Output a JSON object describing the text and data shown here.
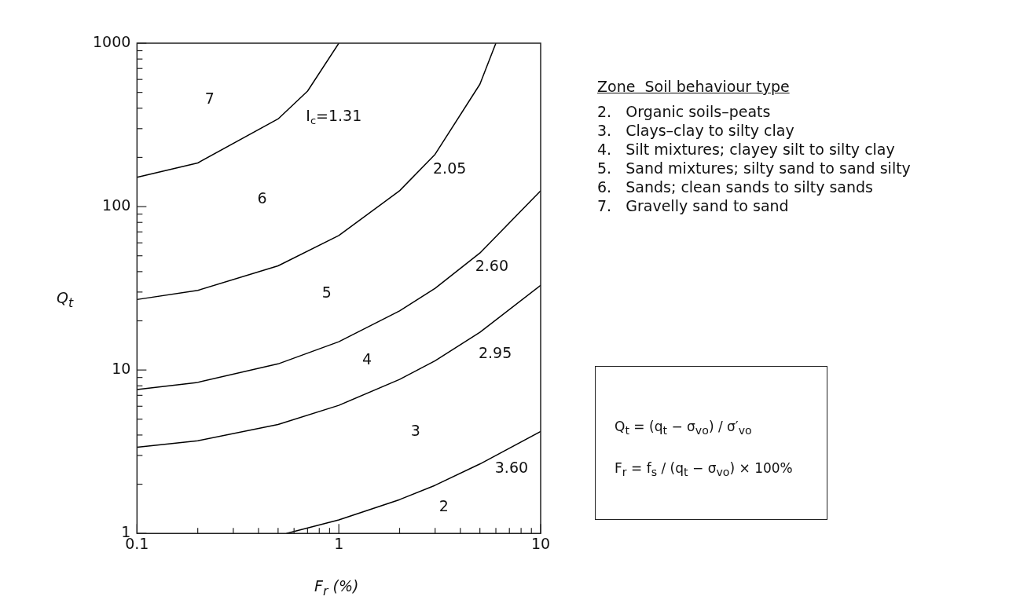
{
  "chart_data": {
    "type": "line",
    "xlabel": "F$_{r}$ (%)",
    "ylabel": "Q$_{t}$",
    "log": "xy",
    "grid": false,
    "legend": false,
    "marker": "none",
    "line_style": "solid",
    "xlim": [
      0.1,
      10
    ],
    "ylim": [
      1,
      1000
    ],
    "xticks": [
      0.1,
      {
        "value": 0.2,
        "label": null
      },
      {
        "value": 0.3,
        "label": null
      },
      {
        "value": 0.4,
        "label": null
      },
      {
        "value": 0.5,
        "label": null
      },
      {
        "value": 0.6,
        "label": null
      },
      {
        "value": 0.7,
        "label": null
      },
      {
        "value": 0.8,
        "label": null
      },
      {
        "value": 0.9,
        "label": null
      },
      1,
      {
        "value": 2,
        "label": null
      },
      {
        "value": 3,
        "label": null
      },
      {
        "value": 4,
        "label": null
      },
      {
        "value": 5,
        "label": null
      },
      {
        "value": 6,
        "label": null
      },
      {
        "value": 7,
        "label": null
      },
      {
        "value": 8,
        "label": null
      },
      {
        "value": 9,
        "label": null
      },
      10
    ],
    "yticks": [
      1,
      {
        "value": 2,
        "label": null
      },
      {
        "value": 3,
        "label": null
      },
      {
        "value": 4,
        "label": null
      },
      {
        "value": 5,
        "label": null
      },
      {
        "value": 6,
        "label": null
      },
      {
        "value": 7,
        "label": null
      },
      {
        "value": 8,
        "label": null
      },
      {
        "value": 9,
        "label": null
      },
      10,
      {
        "value": 20,
        "label": null
      },
      {
        "value": 30,
        "label": null
      },
      {
        "value": 40,
        "label": null
      },
      {
        "value": 50,
        "label": null
      },
      {
        "value": 60,
        "label": null
      },
      {
        "value": 70,
        "label": null
      },
      {
        "value": 80,
        "label": null
      },
      {
        "value": 90,
        "label": null
      },
      100,
      {
        "value": 200,
        "label": null
      },
      {
        "value": 300,
        "label": null
      },
      {
        "value": 400,
        "label": null
      },
      {
        "value": 500,
        "label": null
      },
      {
        "value": 600,
        "label": null
      },
      {
        "value": 700,
        "label": null
      },
      {
        "value": 800,
        "label": null
      },
      {
        "value": 900,
        "label": null
      },
      1000
    ],
    "series": [
      {
        "name": "I$_{c}$=1.31",
        "color": "#000000",
        "x": [
          0.1,
          0.2,
          0.5,
          0.7,
          1.0
        ],
        "values": [
          151,
          185,
          344,
          509,
          1000
        ]
      },
      {
        "name": "2.05",
        "color": "#000000",
        "x": [
          0.1,
          0.2,
          0.5,
          1,
          2,
          3,
          5,
          6
        ],
        "values": [
          27,
          30.7,
          43.4,
          66.5,
          125,
          209,
          561,
          1000
        ]
      },
      {
        "name": "2.60",
        "color": "#000000",
        "x": [
          0.1,
          0.2,
          0.5,
          1,
          2,
          3,
          5,
          10
        ],
        "values": [
          7.6,
          8.4,
          10.9,
          14.9,
          23,
          31.6,
          52,
          125
        ]
      },
      {
        "name": "2.95",
        "color": "#000000",
        "x": [
          0.1,
          0.2,
          0.5,
          1,
          2,
          3,
          5,
          10
        ],
        "values": [
          3.37,
          3.69,
          4.64,
          6.08,
          8.76,
          11.4,
          17,
          33
        ]
      },
      {
        "name": "3.60",
        "color": "#000000",
        "x": [
          0.55,
          1,
          2,
          3,
          5,
          10
        ],
        "values": [
          1,
          1.21,
          1.61,
          1.97,
          2.66,
          4.2
        ]
      }
    ],
    "annotations": [
      "7",
      "6",
      "5",
      "4",
      "3",
      "2",
      "Zone  Soil behaviour type",
      "2.   Organic soils–peats",
      "3.   Clays–clay to silty clay",
      "4.   Silt mixtures; clayey silt to silty clay",
      "5.   Sand mixtures; silty sand to sand silty",
      "6.   Sands; clean sands to silty sands",
      "7.   Gravelly sand to sand",
      "Q$_{t}$ = (q$_{t}$ − σ$_{vo}$) / σ′$_{vo}$",
      "F$_{r}$ = f$_{s}$ / (q$_{t}$ − σ$_{vo}$) × 100%"
    ]
  }
}
